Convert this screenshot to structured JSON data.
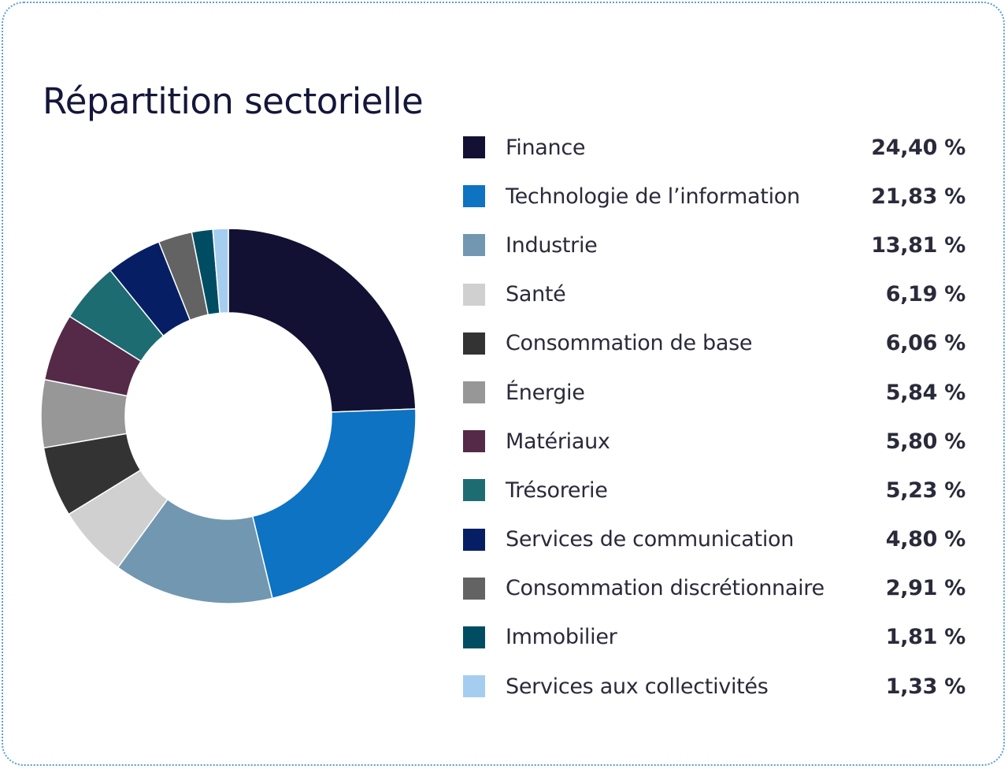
{
  "colors": {
    "card_border": "#5a9fd4",
    "title": "#14163a",
    "text": "#2a2a3a"
  },
  "chart_data": {
    "type": "pie",
    "title": "Répartition sectorielle",
    "legend_position": "right",
    "donut": true,
    "slices": [
      {
        "label": "Finance",
        "value": 24.4,
        "display": "24,40 %",
        "color": "#121133"
      },
      {
        "label": "Technologie de l’information",
        "value": 21.83,
        "display": "21,83 %",
        "color": "#0d73c2"
      },
      {
        "label": "Industrie",
        "value": 13.81,
        "display": "13,81 %",
        "color": "#7297b0"
      },
      {
        "label": "Santé",
        "value": 6.19,
        "display": "6,19 %",
        "color": "#d0d0d0"
      },
      {
        "label": "Consommation de base",
        "value": 6.06,
        "display": "6,06 %",
        "color": "#333333"
      },
      {
        "label": "Énergie",
        "value": 5.84,
        "display": "5,84 %",
        "color": "#979797"
      },
      {
        "label": "Matériaux",
        "value": 5.8,
        "display": "5,80 %",
        "color": "#542a48"
      },
      {
        "label": "Trésorerie",
        "value": 5.23,
        "display": "5,23 %",
        "color": "#1d6c72"
      },
      {
        "label": "Services de communication",
        "value": 4.8,
        "display": "4,80 %",
        "color": "#061f64"
      },
      {
        "label": "Consommation discrétionnaire",
        "value": 2.91,
        "display": "2,91 %",
        "color": "#636363"
      },
      {
        "label": "Immobilier",
        "value": 1.81,
        "display": "1,81 %",
        "color": "#004d63"
      },
      {
        "label": "Services aux collectivités",
        "value": 1.33,
        "display": "1,33 %",
        "color": "#a5cdf0"
      }
    ]
  }
}
